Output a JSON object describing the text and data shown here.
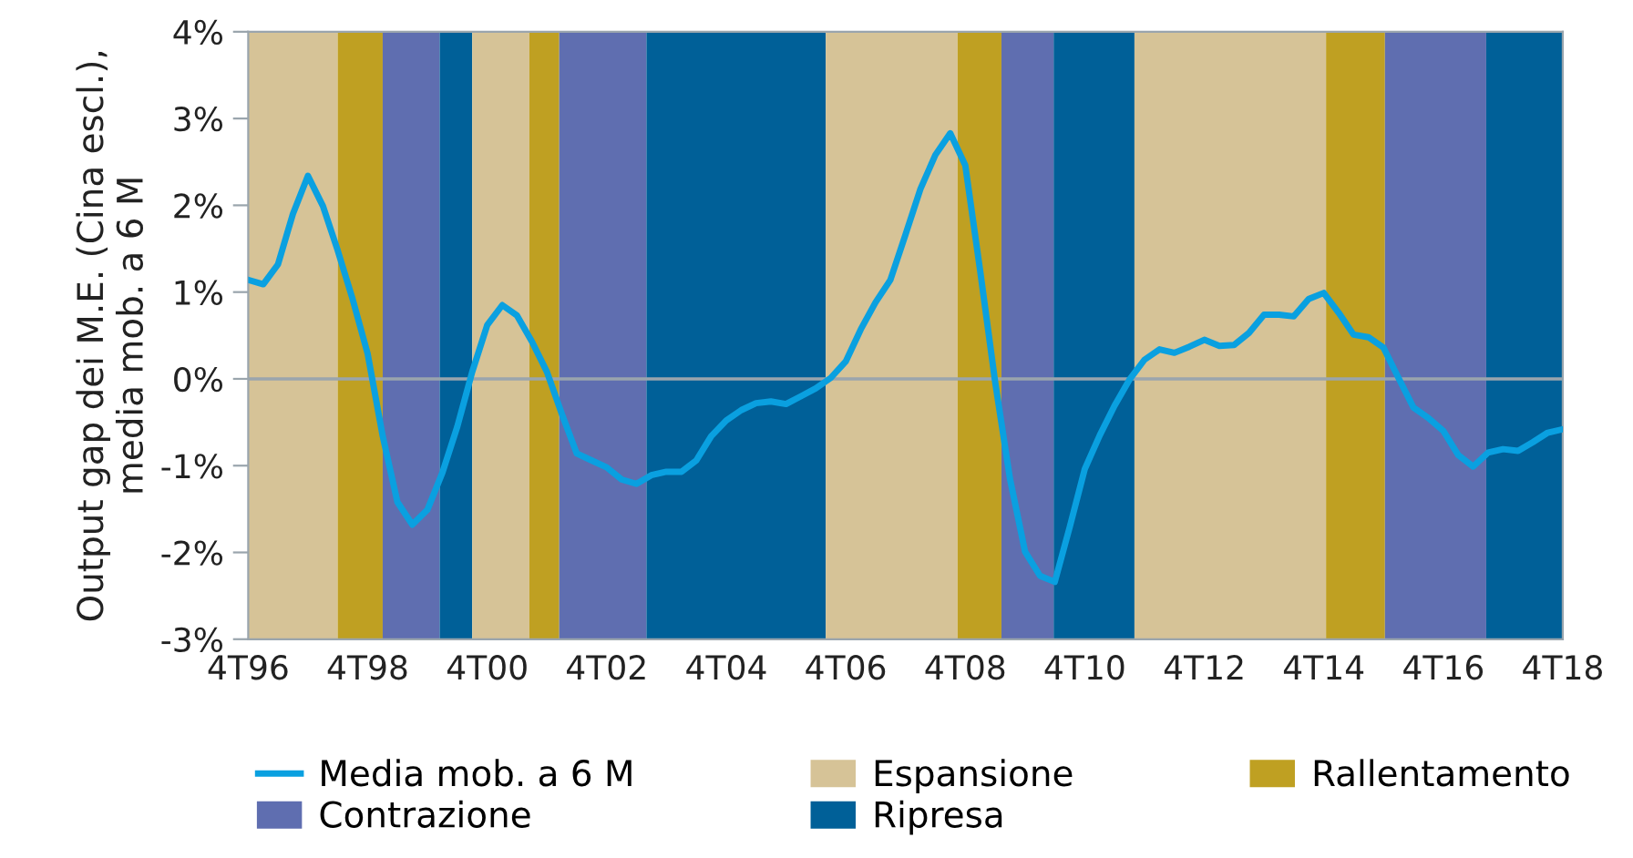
{
  "chart_data": {
    "type": "line",
    "ylabel": "Output gap dei M.E. (Cina escl.),\nmedia mob. a 6 M",
    "xlim": [
      "1996-10",
      "2018-10"
    ],
    "ylim": [
      -3,
      4
    ],
    "xticks": [
      {
        "value": "1996-10",
        "label": "4T96"
      },
      {
        "value": "1998-10",
        "label": "4T98"
      },
      {
        "value": "2000-10",
        "label": "4T00"
      },
      {
        "value": "2002-10",
        "label": "4T02"
      },
      {
        "value": "2004-10",
        "label": "4T04"
      },
      {
        "value": "2006-10",
        "label": "4T06"
      },
      {
        "value": "2008-10",
        "label": "4T08"
      },
      {
        "value": "2010-10",
        "label": "4T10"
      },
      {
        "value": "2012-10",
        "label": "4T12"
      },
      {
        "value": "2014-10",
        "label": "4T14"
      },
      {
        "value": "2016-10",
        "label": "4T16"
      },
      {
        "value": "2018-10",
        "label": "4T18"
      }
    ],
    "yticks": [
      {
        "value": -3,
        "label": "-3%"
      },
      {
        "value": -2,
        "label": "-2%"
      },
      {
        "value": -1,
        "label": "-1%"
      },
      {
        "value": 0,
        "label": "0%"
      },
      {
        "value": 1,
        "label": "1%"
      },
      {
        "value": 2,
        "label": "2%"
      },
      {
        "value": 3,
        "label": "3%"
      },
      {
        "value": 4,
        "label": "4%"
      }
    ],
    "legend": "bottom",
    "marker": "none",
    "line_style": "solid",
    "ref_lines": [
      {
        "axis": "y",
        "value": 0,
        "color": "#9aa5ad"
      }
    ],
    "bands": [
      {
        "axis": "x",
        "from": "1996-10-01",
        "to": "1998-04-01",
        "label": "Espansione",
        "color": "#d6c397"
      },
      {
        "axis": "x",
        "from": "1998-04-01",
        "to": "1999-01-01",
        "label": "Rallentamento",
        "color": "#bfa022"
      },
      {
        "axis": "x",
        "from": "1999-01-01",
        "to": "1999-12-15",
        "label": "Contrazione",
        "color": "#5f6eb0"
      },
      {
        "axis": "x",
        "from": "1999-12-15",
        "to": "2000-07-01",
        "label": "Ripresa",
        "color": "#006098"
      },
      {
        "axis": "x",
        "from": "2000-07-01",
        "to": "2001-06-15",
        "color": "#d6c397"
      },
      {
        "axis": "x",
        "from": "2001-06-15",
        "to": "2001-12-15",
        "color": "#bfa022"
      },
      {
        "axis": "x",
        "from": "2001-12-15",
        "to": "2003-06-01",
        "color": "#5f6eb0"
      },
      {
        "axis": "x",
        "from": "2003-06-01",
        "to": "2006-06-01",
        "color": "#006098"
      },
      {
        "axis": "x",
        "from": "2006-06-01",
        "to": "2008-08-15",
        "color": "#d6c397"
      },
      {
        "axis": "x",
        "from": "2008-08-15",
        "to": "2009-05-10",
        "color": "#bfa022"
      },
      {
        "axis": "x",
        "from": "2009-05-10",
        "to": "2010-03-25",
        "color": "#5f6eb0"
      },
      {
        "axis": "x",
        "from": "2010-03-25",
        "to": "2011-08-01",
        "color": "#006098"
      },
      {
        "axis": "x",
        "from": "2011-08-01",
        "to": "2014-10-15",
        "color": "#d6c397"
      },
      {
        "axis": "x",
        "from": "2014-10-15",
        "to": "2015-10-10",
        "color": "#bfa022"
      },
      {
        "axis": "x",
        "from": "2015-10-10",
        "to": "2017-06-20",
        "color": "#5f6eb0"
      },
      {
        "axis": "x",
        "from": "2017-06-20",
        "to": "2018-10-01",
        "color": "#006098"
      }
    ],
    "series": [
      {
        "name": "Media mob. a 6 M",
        "color": "#0aa0e0",
        "x": [
          "1996-10",
          "1997-01",
          "1997-04",
          "1997-07",
          "1997-10",
          "1998-01",
          "1998-04",
          "1998-07",
          "1998-10",
          "1999-01",
          "1999-04",
          "1999-07",
          "1999-10",
          "2000-01",
          "2000-04",
          "2000-07",
          "2000-10",
          "2001-01",
          "2001-04",
          "2001-07",
          "2001-10",
          "2002-01",
          "2002-04",
          "2002-07",
          "2002-10",
          "2003-01",
          "2003-04",
          "2003-07",
          "2003-10",
          "2004-01",
          "2004-04",
          "2004-07",
          "2004-10",
          "2005-01",
          "2005-04",
          "2005-07",
          "2005-10",
          "2006-01",
          "2006-04",
          "2006-07",
          "2006-10",
          "2007-01",
          "2007-04",
          "2007-07",
          "2007-10",
          "2008-01",
          "2008-04",
          "2008-07",
          "2008-10",
          "2009-01",
          "2009-04",
          "2009-07",
          "2009-10",
          "2010-01",
          "2010-04",
          "2010-07",
          "2010-10",
          "2011-01",
          "2011-04",
          "2011-07",
          "2011-10",
          "2012-01",
          "2012-04",
          "2012-07",
          "2012-10",
          "2013-01",
          "2013-04",
          "2013-07",
          "2013-10",
          "2014-01",
          "2014-04",
          "2014-07",
          "2014-10",
          "2015-01",
          "2015-04",
          "2015-07",
          "2015-10",
          "2016-01",
          "2016-04",
          "2016-07",
          "2016-10",
          "2017-01",
          "2017-04",
          "2017-07",
          "2017-10",
          "2018-01",
          "2018-04",
          "2018-07",
          "2018-10"
        ],
        "values": [
          1.14,
          1.09,
          1.32,
          1.9,
          2.34,
          1.99,
          1.48,
          0.92,
          0.29,
          -0.66,
          -1.42,
          -1.68,
          -1.51,
          -1.08,
          -0.55,
          0.08,
          0.62,
          0.85,
          0.73,
          0.43,
          0.08,
          -0.41,
          -0.86,
          -0.94,
          -1.02,
          -1.16,
          -1.21,
          -1.11,
          -1.07,
          -1.07,
          -0.94,
          -0.66,
          -0.48,
          -0.36,
          -0.28,
          -0.26,
          -0.29,
          -0.2,
          -0.11,
          0.01,
          0.2,
          0.57,
          0.88,
          1.14,
          1.66,
          2.19,
          2.58,
          2.83,
          2.46,
          1.23,
          -0.03,
          -1.15,
          -1.99,
          -2.27,
          -2.34,
          -1.71,
          -1.04,
          -0.65,
          -0.31,
          -0.01,
          0.22,
          0.34,
          0.3,
          0.37,
          0.45,
          0.38,
          0.39,
          0.53,
          0.74,
          0.74,
          0.72,
          0.92,
          0.99,
          0.76,
          0.51,
          0.48,
          0.36,
          0.01,
          -0.33,
          -0.45,
          -0.6,
          -0.88,
          -1.01,
          -0.85,
          -0.81,
          -0.83,
          -0.73,
          -0.62,
          -0.58
        ]
      }
    ]
  }
}
